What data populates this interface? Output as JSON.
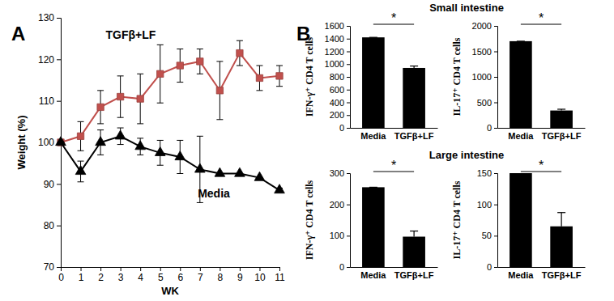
{
  "chart_data": [
    {
      "type": "line",
      "panel": "A",
      "x": [
        0,
        1,
        2,
        3,
        4,
        5,
        6,
        7,
        8,
        9,
        10,
        11
      ],
      "xlim": [
        0,
        11
      ],
      "xticks": [
        0,
        1,
        2,
        3,
        4,
        5,
        6,
        7,
        8,
        9,
        10,
        11
      ],
      "ylim": [
        70,
        130
      ],
      "yticks": [
        70,
        80,
        90,
        100,
        110,
        120,
        130
      ],
      "x_label": "WK",
      "y_label": "Weight (%)",
      "series": [
        {
          "name": "TGFβ+LF",
          "color": "#c0504d",
          "marker": "square",
          "values": [
            100,
            101.5,
            108.5,
            111,
            110.5,
            116.5,
            118.5,
            119.5,
            112.5,
            121.5,
            115.5,
            116
          ],
          "errors": [
            0,
            3.5,
            4,
            5,
            6,
            7,
            4,
            3,
            7,
            3,
            3,
            2.5
          ]
        },
        {
          "name": "Media",
          "color": "#000000",
          "marker": "triangle",
          "values": [
            100,
            93,
            100,
            101.5,
            99,
            97.5,
            96.5,
            93.5,
            92.5,
            92.5,
            91.5,
            88.5
          ],
          "errors": [
            0,
            2.5,
            3,
            2,
            2,
            3,
            4,
            8,
            0,
            0,
            0,
            0.5
          ]
        }
      ]
    },
    {
      "type": "bar",
      "panel": "B",
      "title": "Small intestine",
      "categories": [
        "Media",
        "TGFβ+LF"
      ],
      "values": [
        1420,
        940
      ],
      "errors": [
        0,
        30
      ],
      "color": "#000000",
      "ylim": [
        0,
        1600
      ],
      "yticks": [
        0,
        200,
        400,
        600,
        800,
        1000,
        1200,
        1400,
        1600
      ],
      "y_label": "IFN-γ⁺ CD4 T cells",
      "annotations": [
        "*"
      ]
    },
    {
      "type": "bar",
      "categories": [
        "Media",
        "TGFβ+LF"
      ],
      "values": [
        1700,
        340
      ],
      "errors": [
        0,
        25
      ],
      "color": "#000000",
      "ylim": [
        0,
        2000
      ],
      "yticks": [
        0,
        500,
        1000,
        1500,
        2000
      ],
      "y_label": "IL-17⁺ CD4 T cells",
      "annotations": [
        "*"
      ]
    },
    {
      "type": "bar",
      "title": "Large intestine",
      "categories": [
        "Media",
        "TGFβ+LF"
      ],
      "values": [
        255,
        97
      ],
      "errors": [
        0,
        18
      ],
      "color": "#000000",
      "ylim": [
        0,
        300
      ],
      "yticks": [
        0,
        100,
        200,
        300
      ],
      "y_label": "IFN-γ⁺ CD4 T cells",
      "annotations": [
        "*"
      ]
    },
    {
      "type": "bar",
      "categories": [
        "Media",
        "TGFβ+LF"
      ],
      "values": [
        150,
        65
      ],
      "errors": [
        0,
        22
      ],
      "color": "#000000",
      "ylim": [
        0,
        150
      ],
      "yticks": [
        0,
        50,
        100,
        150
      ],
      "y_label": "IL-17⁺ CD4 T cells",
      "annotations": [
        "*"
      ]
    }
  ]
}
